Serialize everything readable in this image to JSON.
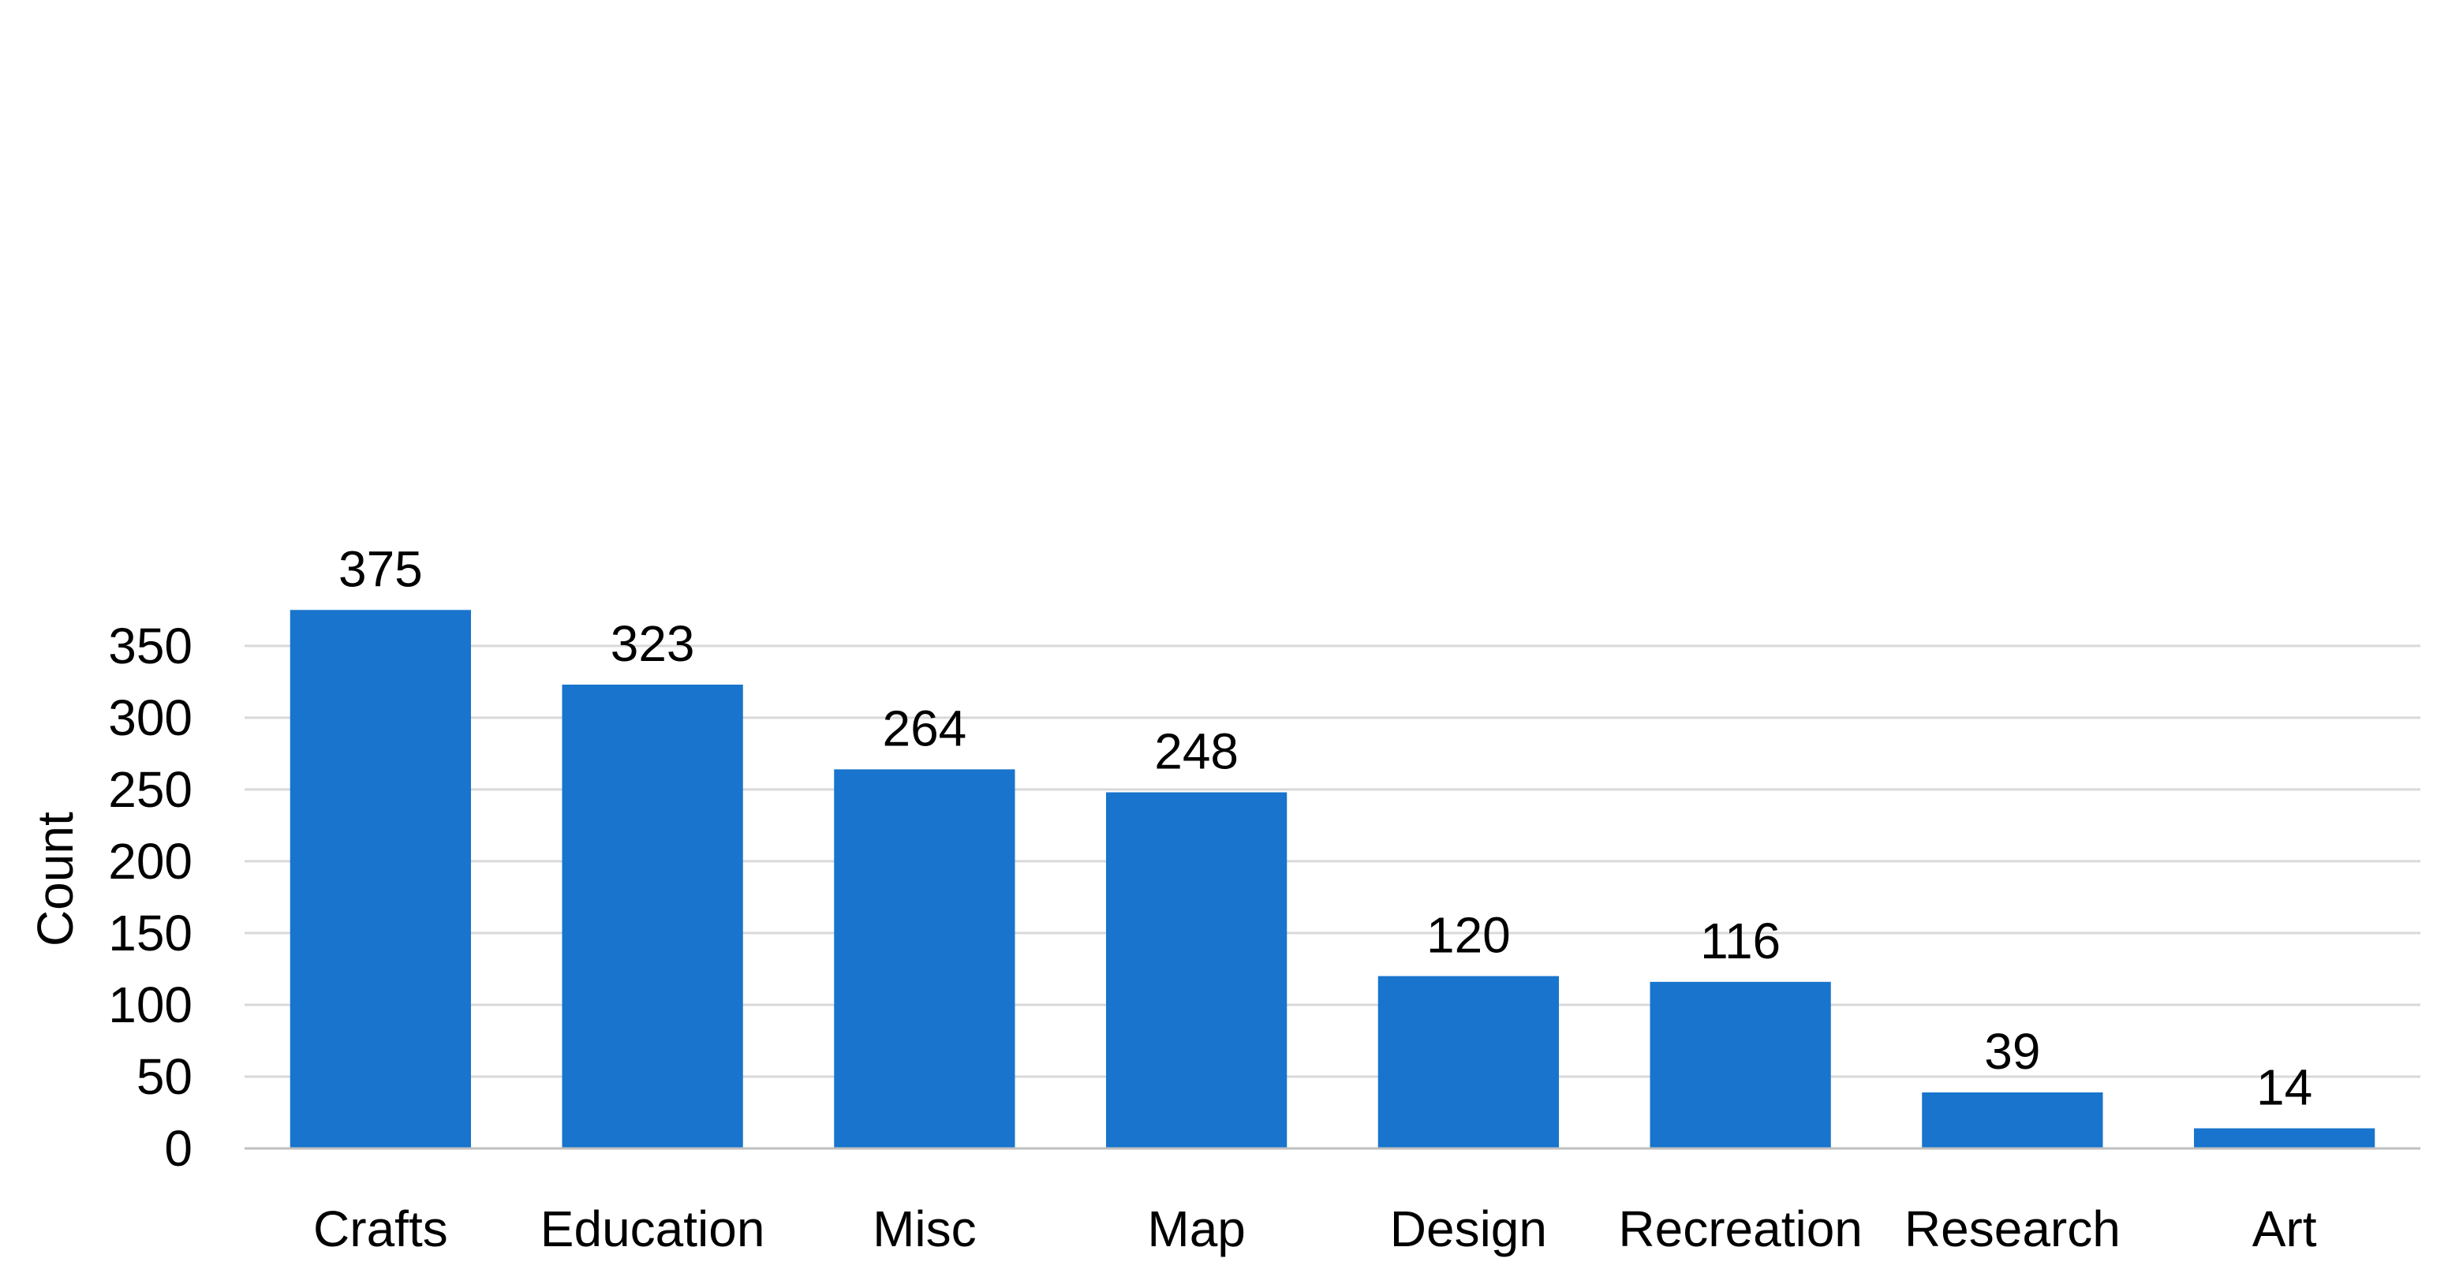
{
  "chart_data": {
    "type": "bar",
    "categories": [
      "Crafts",
      "Education",
      "Misc",
      "Map",
      "Design",
      "Recreation",
      "Research",
      "Art"
    ],
    "values": [
      375,
      323,
      264,
      248,
      120,
      116,
      39,
      14
    ],
    "data_labels": [
      "375",
      "323",
      "264",
      "248",
      "120",
      "116",
      "39",
      "14"
    ],
    "title": "",
    "xlabel": "",
    "ylabel": "Count",
    "ylim": [
      0,
      375
    ],
    "yticks": [
      0,
      50,
      100,
      150,
      200,
      250,
      300,
      350
    ],
    "ytick_labels": [
      "0",
      "50",
      "100",
      "150",
      "200",
      "250",
      "300",
      "350"
    ],
    "grid": true,
    "legend": "none",
    "bar_color": "#1874CD",
    "grid_color": "#d9d9d9"
  }
}
